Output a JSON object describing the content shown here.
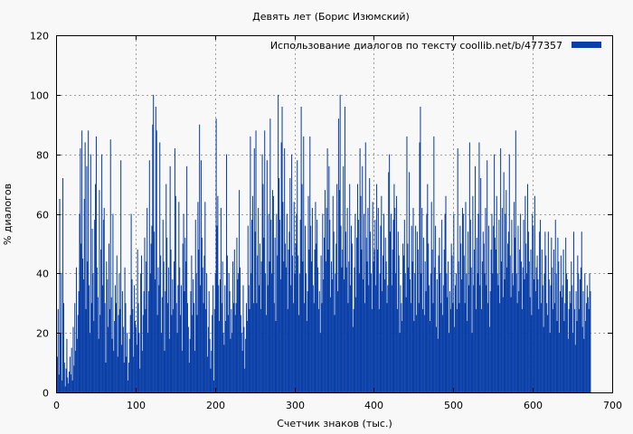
{
  "chart_data": {
    "type": "bar",
    "title": "Девять лет (Борис Изюмский)",
    "xlabel": "Счетчик знаков (тыс.)",
    "ylabel": "% диалогов",
    "xlim": [
      0,
      700
    ],
    "ylim": [
      0,
      120
    ],
    "xticks": [
      0,
      100,
      200,
      300,
      400,
      500,
      600,
      700
    ],
    "yticks": [
      0,
      20,
      40,
      60,
      80,
      100,
      120
    ],
    "grid": true,
    "legend_position": "top-right",
    "color": "#0a3fa8",
    "series": [
      {
        "name": "Использование диалогов по тексту  coollib.net/b/477357",
        "x_step": 1,
        "values": [
          8,
          12,
          28,
          6,
          65,
          20,
          40,
          4,
          72,
          30,
          10,
          2,
          8,
          18,
          5,
          3,
          7,
          12,
          6,
          15,
          4,
          22,
          9,
          30,
          14,
          42,
          18,
          26,
          34,
          60,
          82,
          50,
          88,
          45,
          38,
          65,
          84,
          28,
          76,
          44,
          88,
          36,
          20,
          80,
          30,
          55,
          40,
          24,
          58,
          70,
          86,
          42,
          32,
          18,
          68,
          26,
          48,
          80,
          36,
          58,
          62,
          30,
          10,
          44,
          38,
          22,
          50,
          28,
          85,
          32,
          18,
          60,
          14,
          24,
          36,
          30,
          46,
          12,
          26,
          40,
          28,
          78,
          16,
          34,
          22,
          10,
          42,
          30,
          12,
          20,
          4,
          10,
          18,
          26,
          60,
          38,
          28,
          12,
          36,
          24,
          22,
          16,
          48,
          30,
          20,
          8,
          40,
          46,
          14,
          26,
          34,
          52,
          28,
          44,
          62,
          20,
          34,
          78,
          40,
          50,
          56,
          90,
          100,
          54,
          38,
          96,
          88,
          26,
          42,
          36,
          84,
          46,
          20,
          32,
          58,
          44,
          14,
          34,
          70,
          52,
          30,
          42,
          18,
          76,
          48,
          26,
          38,
          28,
          44,
          82,
          66,
          30,
          20,
          36,
          64,
          42,
          26,
          36,
          14,
          50,
          60,
          34,
          52,
          44,
          76,
          30,
          22,
          10,
          18,
          34,
          46,
          26,
          38,
          30,
          14,
          58,
          40,
          26,
          64,
          48,
          90,
          36,
          78,
          52,
          42,
          30,
          46,
          64,
          28,
          40,
          12,
          22,
          34,
          18,
          8,
          14,
          26,
          36,
          4,
          28,
          40,
          92,
          56,
          66,
          36,
          24,
          38,
          62,
          30,
          44,
          20,
          16,
          36,
          24,
          80,
          46,
          26,
          40,
          34,
          18,
          28,
          20,
          44,
          30,
          48,
          26,
          30,
          52,
          38,
          40,
          68,
          42,
          26,
          20,
          14,
          36,
          22,
          8,
          18,
          30,
          24,
          56,
          36,
          28,
          86,
          40,
          58,
          66,
          30,
          82,
          54,
          88,
          30,
          46,
          62,
          36,
          50,
          28,
          44,
          80,
          70,
          52,
          88,
          40,
          26,
          78,
          36,
          60,
          44,
          92,
          58,
          40,
          68,
          66,
          30,
          52,
          24,
          60,
          46,
          100,
          72,
          58,
          38,
          84,
          96,
          64,
          44,
          82,
          50,
          42,
          60,
          28,
          48,
          54,
          72,
          36,
          80,
          46,
          30,
          64,
          40,
          50,
          60,
          78,
          46,
          26,
          40,
          58,
          96,
          70,
          44,
          86,
          30,
          56,
          40,
          24,
          34,
          66,
          48,
          86,
          56,
          44,
          62,
          36,
          30,
          48,
          64,
          50,
          58,
          42,
          28,
          34,
          20,
          46,
          30,
          60,
          38,
          52,
          68,
          44,
          62,
          82,
          48,
          76,
          58,
          32,
          44,
          38,
          66,
          54,
          26,
          40,
          50,
          70,
          34,
          92,
          68,
          100,
          56,
          42,
          48,
          76,
          38,
          96,
          54,
          42,
          62,
          30,
          44,
          70,
          36,
          56,
          50,
          22,
          28,
          42,
          60,
          32,
          52,
          70,
          58,
          40,
          82,
          66,
          48,
          76,
          38,
          60,
          30,
          84,
          52,
          44,
          62,
          36,
          72,
          54,
          40,
          28,
          64,
          44,
          48,
          58,
          36,
          70,
          48,
          62,
          28,
          40,
          56,
          66,
          34,
          46,
          60,
          38,
          52,
          44,
          30,
          36,
          74,
          80,
          54,
          60,
          36,
          48,
          58,
          70,
          62,
          40,
          66,
          28,
          54,
          46,
          20,
          36,
          30,
          24,
          50,
          46,
          58,
          40,
          32,
          86,
          50,
          42,
          74,
          38,
          30,
          56,
          44,
          62,
          24,
          40,
          56,
          26,
          54,
          48,
          30,
          84,
          96,
          40,
          62,
          28,
          52,
          26,
          44,
          34,
          60,
          70,
          50,
          36,
          24,
          40,
          64,
          48,
          30,
          86,
          42,
          56,
          22,
          38,
          18,
          46,
          52,
          40,
          30,
          58,
          26,
          36,
          48,
          60,
          66,
          40,
          32,
          44,
          20,
          34,
          28,
          50,
          46,
          30,
          60,
          22,
          36,
          40,
          28,
          82,
          44,
          30,
          56,
          50,
          38,
          62,
          60,
          46,
          30,
          64,
          40,
          24,
          54,
          36,
          84,
          58,
          42,
          20,
          66,
          36,
          48,
          76,
          28,
          52,
          40,
          60,
          84,
          36,
          72,
          28,
          44,
          54,
          50,
          40,
          62,
          36,
          78,
          30,
          56,
          22,
          34,
          48,
          60,
          40,
          56,
          80,
          52,
          48,
          66,
          40,
          36,
          58,
          30,
          82,
          44,
          62,
          32,
          74,
          38,
          60,
          68,
          42,
          50,
          54,
          80,
          46,
          32,
          58,
          40,
          36,
          64,
          52,
          88,
          40,
          30,
          56,
          34,
          48,
          60,
          44,
          28,
          42,
          58,
          38,
          66,
          50,
          40,
          70,
          54,
          44,
          32,
          48,
          26,
          60,
          56,
          38,
          66,
          34,
          42,
          46,
          38,
          28,
          54,
          58,
          30,
          48,
          36,
          22,
          40,
          54,
          46,
          30,
          26,
          54,
          38,
          20,
          36,
          52,
          42,
          28,
          48,
          30,
          58,
          40,
          24,
          52,
          44,
          20,
          34,
          46,
          32,
          36,
          48,
          24,
          30,
          52,
          40,
          38,
          18,
          28,
          34,
          30,
          44,
          36,
          20,
          54,
          28,
          16,
          34,
          24,
          46,
          40,
          28,
          38,
          42,
          54,
          22,
          34,
          18,
          40,
          24,
          30,
          36,
          32,
          28,
          40,
          34
        ]
      }
    ]
  }
}
